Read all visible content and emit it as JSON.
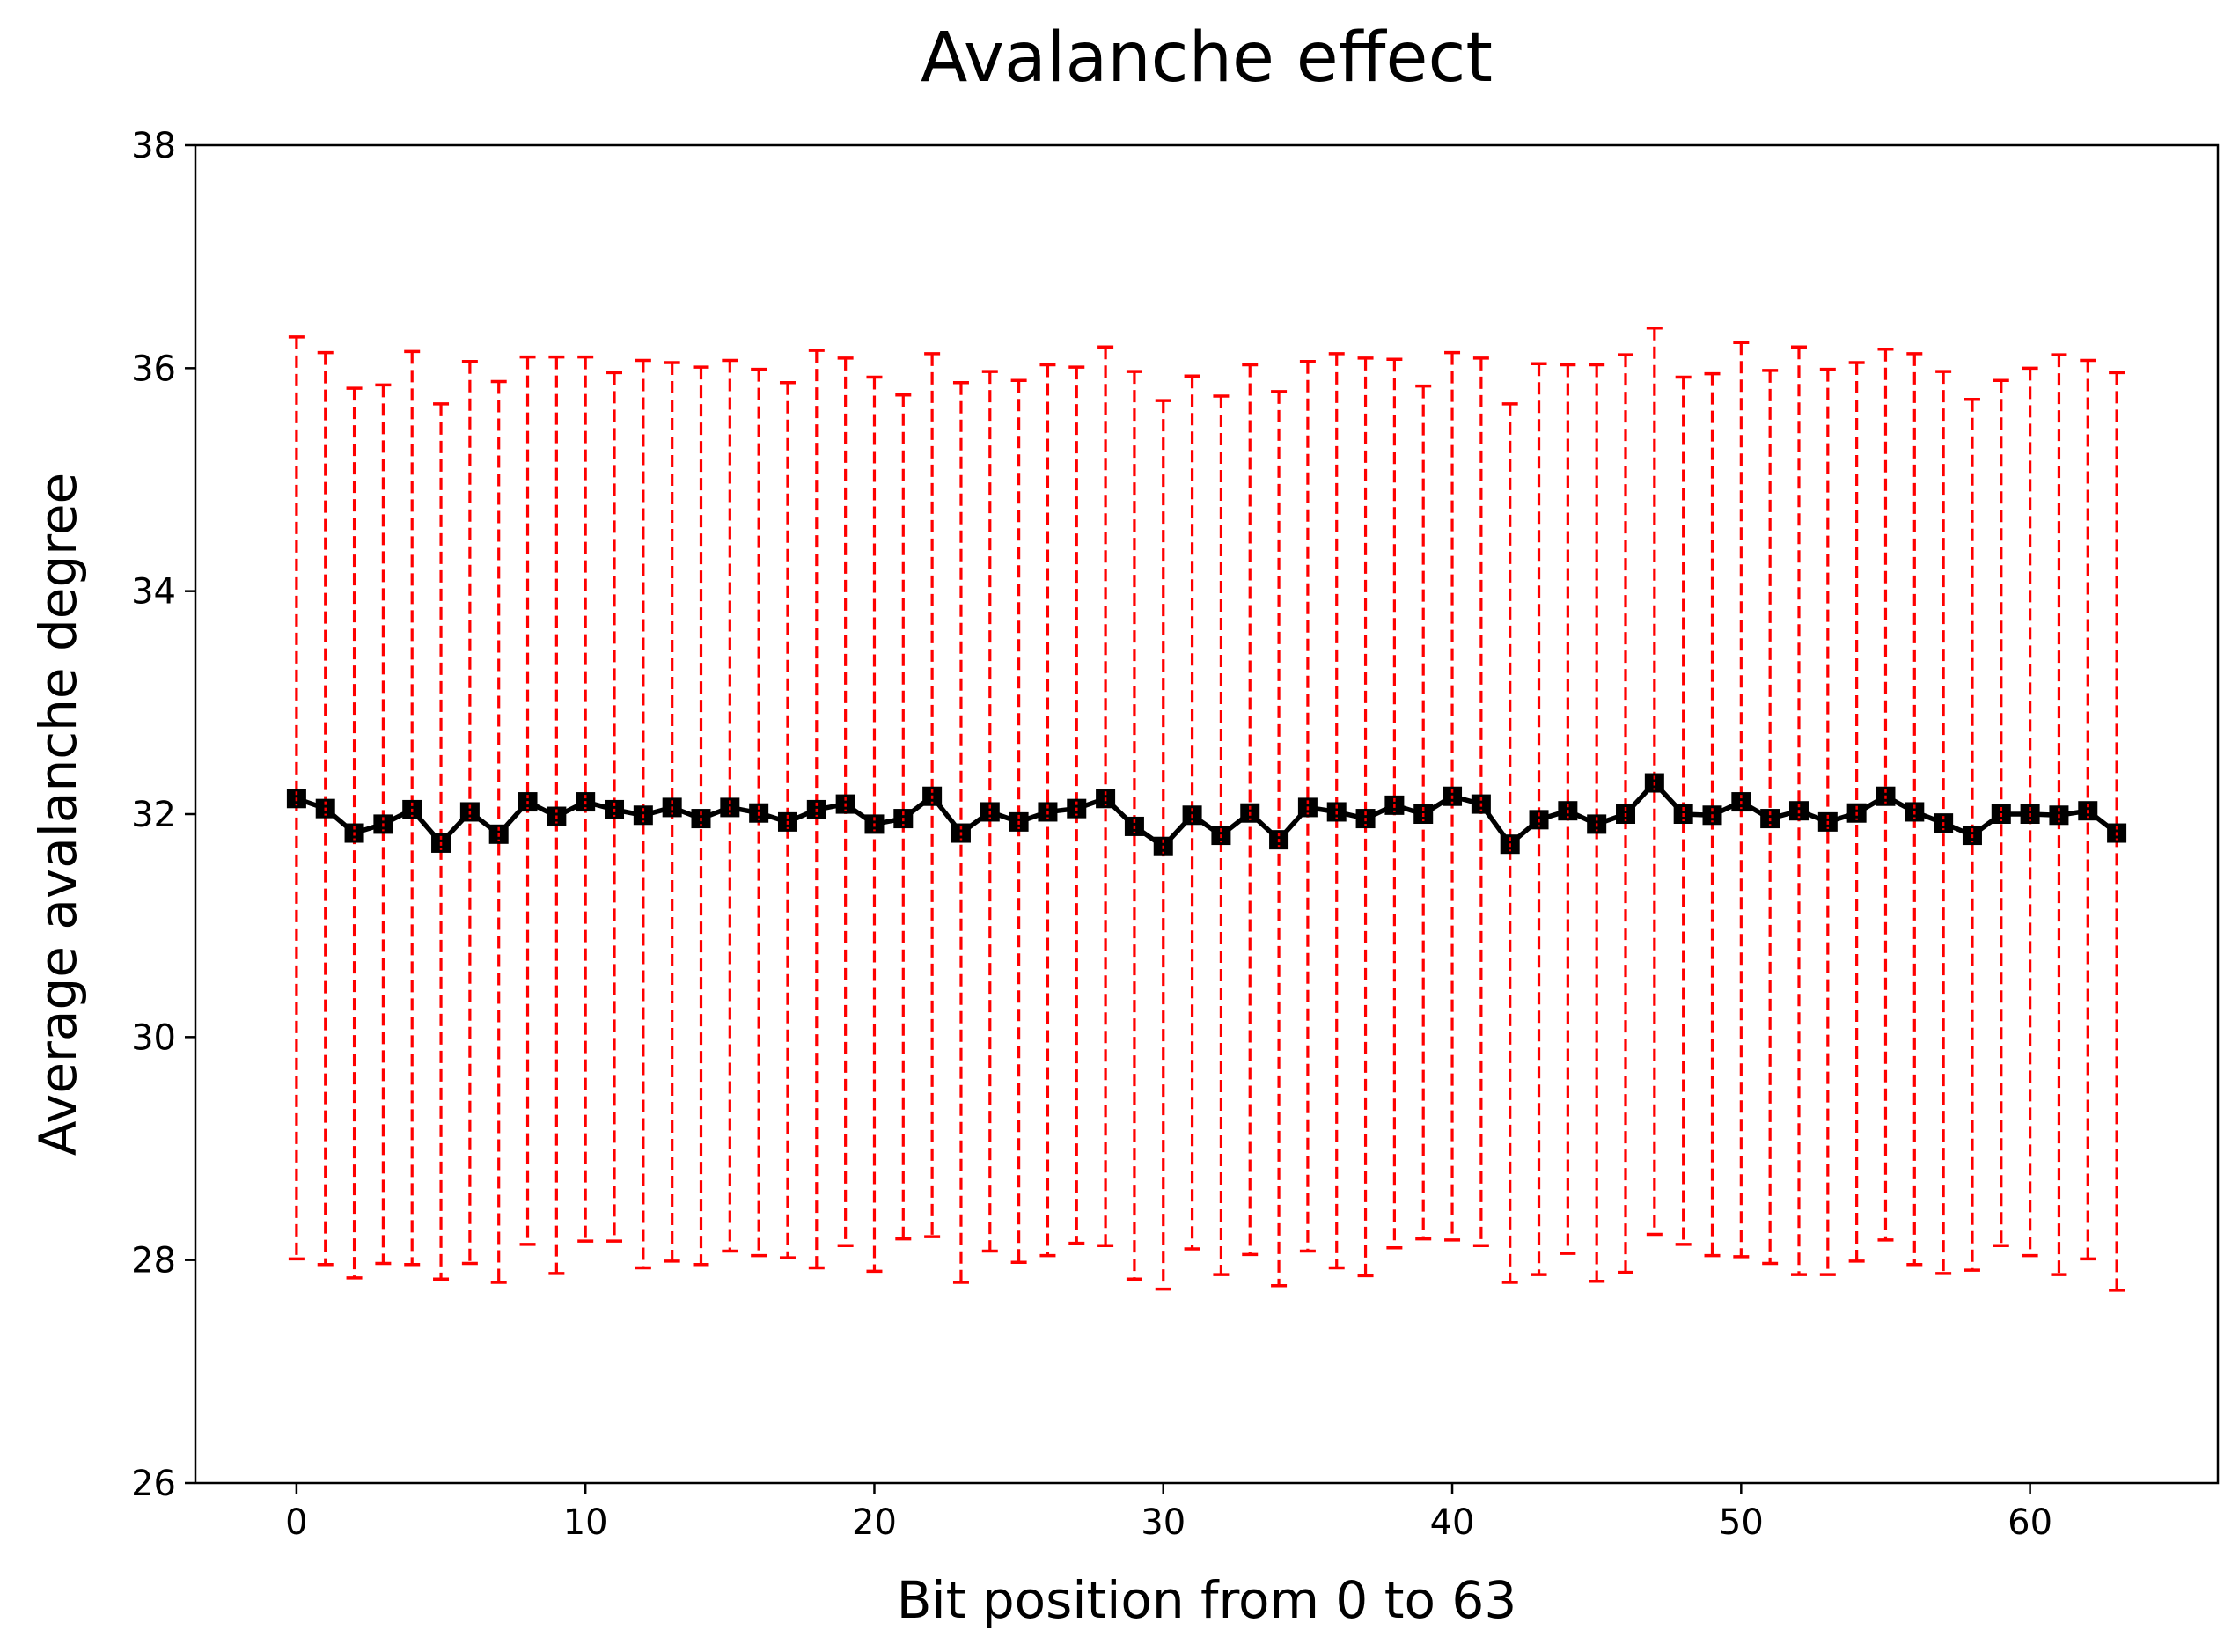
{
  "chart_data": {
    "type": "line",
    "title": "Avalanche effect",
    "xlabel": "Bit position from 0 to 63",
    "ylabel": "Average avalanche degree",
    "xlim": [
      -3.5,
      66.5
    ],
    "ylim": [
      26,
      38
    ],
    "xticks": [
      0,
      10,
      20,
      30,
      40,
      50,
      60
    ],
    "yticks": [
      26,
      28,
      30,
      32,
      34,
      36,
      38
    ],
    "grid": false,
    "colors": {
      "mean_line": "#000000",
      "errorbar": "#ff0000"
    },
    "series": [
      {
        "name": "Average avalanche degree",
        "marker": "square",
        "x": [
          0,
          1,
          2,
          3,
          4,
          5,
          6,
          7,
          8,
          9,
          10,
          11,
          12,
          13,
          14,
          15,
          16,
          17,
          18,
          19,
          20,
          21,
          22,
          23,
          24,
          25,
          26,
          27,
          28,
          29,
          30,
          31,
          32,
          33,
          34,
          35,
          36,
          37,
          38,
          39,
          40,
          41,
          42,
          43,
          44,
          45,
          46,
          47,
          48,
          49,
          50,
          51,
          52,
          53,
          54,
          55,
          56,
          57,
          58,
          59,
          60,
          61,
          62,
          63
        ],
        "values": [
          32.14,
          32.05,
          31.83,
          31.91,
          32.04,
          31.74,
          32.02,
          31.82,
          32.11,
          31.98,
          32.11,
          32.04,
          31.99,
          32.06,
          31.96,
          32.06,
          32.01,
          31.93,
          32.04,
          32.09,
          31.91,
          31.96,
          32.16,
          31.83,
          32.02,
          31.93,
          32.02,
          32.05,
          32.14,
          31.89,
          31.71,
          31.99,
          31.81,
          32.01,
          31.77,
          32.06,
          32.02,
          31.96,
          32.08,
          32.0,
          32.16,
          32.09,
          31.73,
          31.95,
          32.03,
          31.91,
          32.0,
          32.28,
          32.0,
          31.99,
          32.11,
          31.96,
          32.03,
          31.93,
          32.01,
          32.16,
          32.02,
          31.92,
          31.81,
          32.0,
          32.0,
          31.99,
          32.03,
          31.83
        ],
        "err_low": [
          28.01,
          27.96,
          27.84,
          27.97,
          27.96,
          27.83,
          27.97,
          27.8,
          28.14,
          27.88,
          28.17,
          28.17,
          27.93,
          27.99,
          27.96,
          28.08,
          28.04,
          28.02,
          27.93,
          28.13,
          27.9,
          28.19,
          28.21,
          27.8,
          28.08,
          27.98,
          28.04,
          28.15,
          28.13,
          27.83,
          27.74,
          28.1,
          27.87,
          28.05,
          27.77,
          28.08,
          27.93,
          27.86,
          28.11,
          28.19,
          28.18,
          28.13,
          27.8,
          27.87,
          28.06,
          27.81,
          27.89,
          28.23,
          28.14,
          28.04,
          28.03,
          27.97,
          27.87,
          27.87,
          27.99,
          28.18,
          27.96,
          27.88,
          27.91,
          28.13,
          28.04,
          27.87,
          28.01,
          27.73
        ],
        "err_high": [
          36.28,
          36.14,
          35.82,
          35.85,
          36.15,
          35.68,
          36.06,
          35.88,
          36.1,
          36.1,
          36.1,
          35.96,
          36.07,
          36.05,
          36.01,
          36.07,
          35.99,
          35.87,
          36.16,
          36.09,
          35.92,
          35.76,
          36.13,
          35.87,
          35.97,
          35.89,
          36.03,
          36.01,
          36.19,
          35.97,
          35.71,
          35.93,
          35.75,
          36.03,
          35.79,
          36.06,
          36.13,
          36.09,
          36.08,
          35.84,
          36.14,
          36.09,
          35.68,
          36.04,
          36.03,
          36.03,
          36.12,
          36.36,
          35.92,
          35.95,
          36.23,
          35.98,
          36.19,
          35.99,
          36.05,
          36.17,
          36.13,
          35.97,
          35.72,
          35.89,
          36.0,
          36.12,
          36.07,
          35.96
        ]
      }
    ]
  }
}
